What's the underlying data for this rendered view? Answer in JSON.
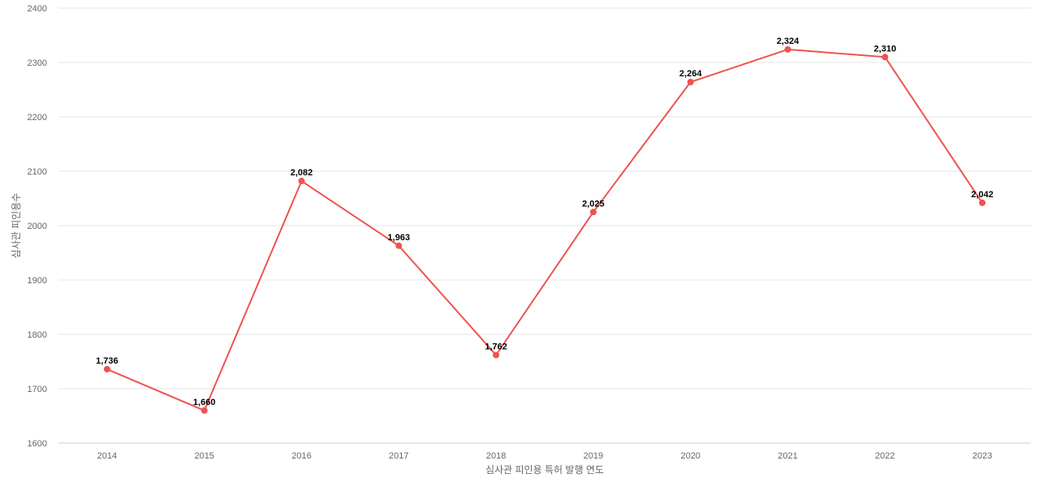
{
  "chart_data": {
    "type": "line",
    "title": "",
    "xlabel": "심사관 피인용 특허 발행 연도",
    "ylabel": "심사관 피인용수",
    "categories": [
      "2014",
      "2015",
      "2016",
      "2017",
      "2018",
      "2019",
      "2020",
      "2021",
      "2022",
      "2023"
    ],
    "series": [
      {
        "values": [
          1736,
          1660,
          2082,
          1963,
          1762,
          2025,
          2264,
          2324,
          2310,
          2042
        ],
        "data_labels": [
          "1,736",
          "1,660",
          "2,082",
          "1,963",
          "1,762",
          "2,025",
          "2,264",
          "2,324",
          "2,310",
          "2,042"
        ],
        "color": "#ef5350"
      }
    ],
    "ylim": [
      1600,
      2400
    ],
    "yticks": [
      1600,
      1700,
      1800,
      1900,
      2000,
      2100,
      2200,
      2300,
      2400
    ],
    "grid": true,
    "legend": "none"
  }
}
